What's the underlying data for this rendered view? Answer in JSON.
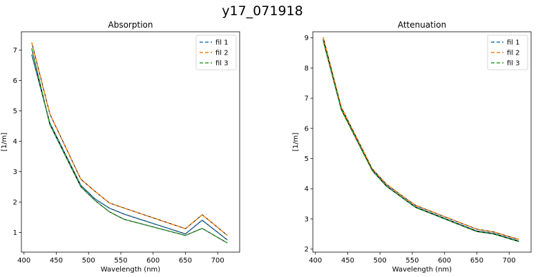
{
  "figure": {
    "suptitle": "y17_071918"
  },
  "chart_data": [
    {
      "type": "line",
      "title": "Absorption",
      "xlabel": "Wavelength (nm)",
      "ylabel": "[1/m]",
      "xlim": [
        396,
        734
      ],
      "ylim": [
        0.35,
        7.6
      ],
      "xticks": [
        400,
        450,
        500,
        550,
        600,
        650,
        700
      ],
      "yticks": [
        1,
        2,
        3,
        4,
        5,
        6,
        7
      ],
      "legend_position": "top-right",
      "x": [
        412,
        440,
        488,
        510,
        532,
        555,
        650,
        676,
        715
      ],
      "series": [
        {
          "name": "fil 1",
          "color": "#1f77b4",
          "linestyle": "dashed",
          "values": [
            6.85,
            4.6,
            2.55,
            2.1,
            1.8,
            1.6,
            0.95,
            1.4,
            0.75
          ]
        },
        {
          "name": "fil 2",
          "color": "#ff7f0e",
          "linestyle": "dashed",
          "values": [
            7.25,
            4.9,
            2.75,
            2.35,
            1.97,
            1.8,
            1.12,
            1.58,
            0.9
          ]
        },
        {
          "name": "fil 3",
          "color": "#2ca02c",
          "linestyle": "dashed",
          "values": [
            7.05,
            4.55,
            2.5,
            2.05,
            1.68,
            1.43,
            0.9,
            1.13,
            0.65
          ]
        }
      ]
    },
    {
      "type": "line",
      "title": "Attenuation",
      "xlabel": "Wavelength (nm)",
      "ylabel": "[1/m]",
      "xlim": [
        396,
        734
      ],
      "ylim": [
        1.9,
        9.2
      ],
      "xticks": [
        400,
        450,
        500,
        550,
        600,
        650,
        700
      ],
      "yticks": [
        2,
        3,
        4,
        5,
        6,
        7,
        8,
        9
      ],
      "legend_position": "top-right",
      "x": [
        412,
        440,
        488,
        510,
        532,
        555,
        650,
        676,
        715
      ],
      "series": [
        {
          "name": "fil 1",
          "color": "#1f77b4",
          "linestyle": "dashed",
          "values": [
            8.95,
            6.65,
            4.62,
            4.1,
            3.75,
            3.4,
            2.6,
            2.52,
            2.27
          ]
        },
        {
          "name": "fil 2",
          "color": "#ff7f0e",
          "linestyle": "dashed",
          "values": [
            9.02,
            6.7,
            4.66,
            4.15,
            3.8,
            3.45,
            2.66,
            2.57,
            2.32
          ]
        },
        {
          "name": "fil 3",
          "color": "#2ca02c",
          "linestyle": "dashed",
          "values": [
            8.9,
            6.62,
            4.6,
            4.08,
            3.74,
            3.38,
            2.58,
            2.5,
            2.25
          ]
        }
      ]
    }
  ]
}
